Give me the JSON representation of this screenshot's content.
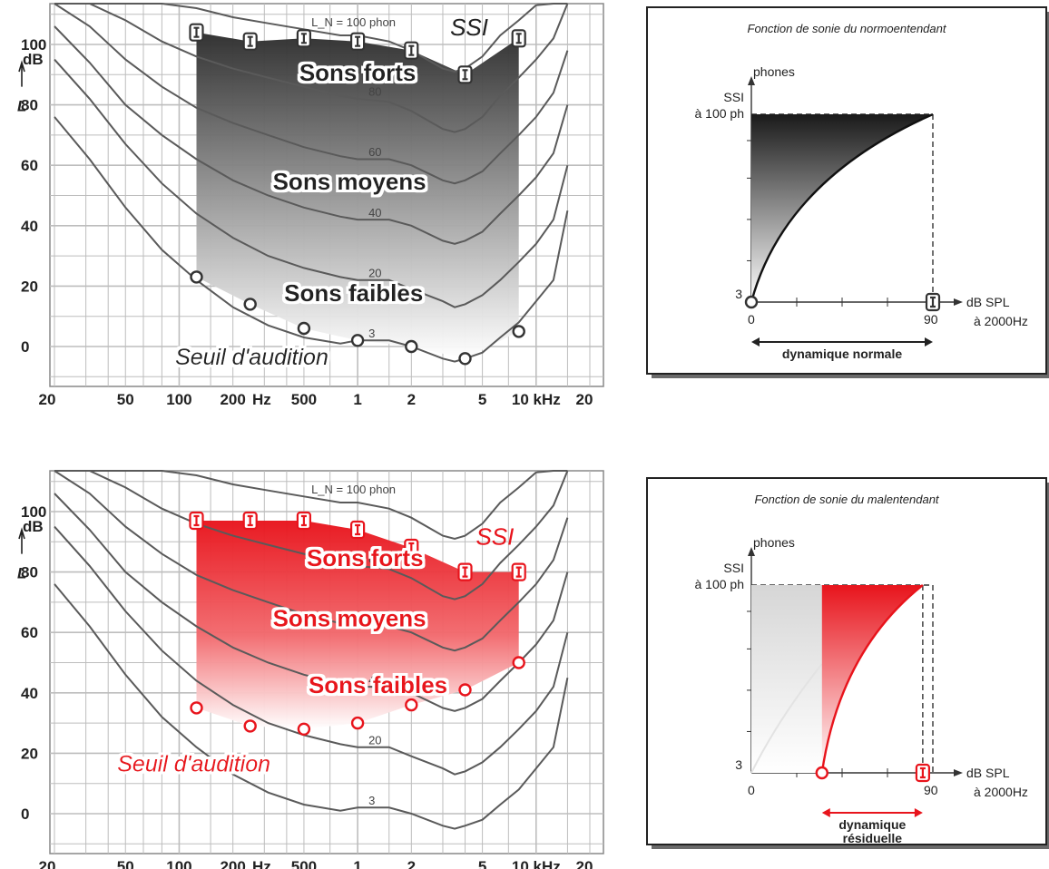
{
  "chart_data": [
    {
      "type": "line",
      "x_ticks": [
        "20",
        "50",
        "100",
        "200",
        "Hz",
        "500",
        "1",
        "2",
        "5",
        "10 kHz",
        "20"
      ],
      "y_ticks": [
        "0",
        "20",
        "40",
        "60",
        "80",
        "100"
      ],
      "y_unit": "dB",
      "y_symbol": "L",
      "ylim": [
        -10,
        110
      ],
      "contour_labels": {
        "top": "L_N = 100 phon",
        "c80": "80",
        "c60": "60",
        "c40": "40",
        "c20": "20",
        "c3": "3"
      },
      "regions": {
        "loud": "Sons forts",
        "medium": "Sons moyens",
        "soft": "Sons faibles"
      },
      "ssi_label": "SSI",
      "threshold_label": "Seuil d'audition",
      "ssi_points": {
        "freq_hz": [
          125,
          250,
          500,
          1000,
          2000,
          4000,
          8000
        ],
        "db": [
          104,
          101,
          102,
          101,
          98,
          90,
          102
        ]
      },
      "threshold_points": {
        "freq_hz": [
          125,
          250,
          500,
          1000,
          2000,
          4000,
          8000
        ],
        "db": [
          23,
          14,
          6,
          2,
          0,
          -4,
          5
        ]
      },
      "color": "#333333"
    },
    {
      "type": "line",
      "x_ticks": [
        "20",
        "50",
        "100",
        "200",
        "Hz",
        "500",
        "1",
        "2",
        "5",
        "10 kHz",
        "20"
      ],
      "y_ticks": [
        "0",
        "20",
        "40",
        "60",
        "80",
        "100"
      ],
      "y_unit": "dB",
      "y_symbol": "L",
      "ylim": [
        -10,
        110
      ],
      "contour_labels": {
        "top": "L_N = 100 phon",
        "c80": "80",
        "c60": "60",
        "c40": "40",
        "c20": "20",
        "c3": "3"
      },
      "regions": {
        "loud": "Sons forts",
        "medium": "Sons moyens",
        "soft": "Sons faibles"
      },
      "ssi_label": "SSI",
      "threshold_label": "Seuil d'audition",
      "ssi_points": {
        "freq_hz": [
          125,
          250,
          500,
          1000,
          2000,
          4000,
          8000
        ],
        "db": [
          97,
          97,
          97,
          94,
          88,
          80,
          80
        ]
      },
      "threshold_points": {
        "freq_hz": [
          125,
          250,
          500,
          1000,
          2000,
          4000,
          8000
        ],
        "db": [
          35,
          29,
          28,
          30,
          36,
          41,
          50
        ]
      },
      "color": "#e8141c"
    },
    {
      "type": "area",
      "title": "Fonction de sonie du normoentendant",
      "ylabel": "phones",
      "y_top_label_1": "SSI",
      "y_top_label_2": "à 100 ph",
      "y_min_label": "3",
      "xlabel": "dB SPL",
      "xlabel_sub": "à 2000Hz",
      "x_ticks": [
        "0",
        "90"
      ],
      "range_label_1": "dynamique normale",
      "range_label_2": "",
      "xlim": [
        0,
        90
      ],
      "start_db": 0,
      "end_db": 90,
      "color": "#000000"
    },
    {
      "type": "area",
      "title": "Fonction de sonie du malentendant",
      "ylabel": "phones",
      "y_top_label_1": "SSI",
      "y_top_label_2": "à 100 ph",
      "y_min_label": "3",
      "xlabel": "dB SPL",
      "xlabel_sub": "à 2000Hz",
      "x_ticks": [
        "0",
        "90"
      ],
      "range_label_1": "dynamique",
      "range_label_2": "résiduelle",
      "xlim": [
        0,
        90
      ],
      "start_db": 35,
      "end_db": 85,
      "color": "#e8141c"
    }
  ]
}
